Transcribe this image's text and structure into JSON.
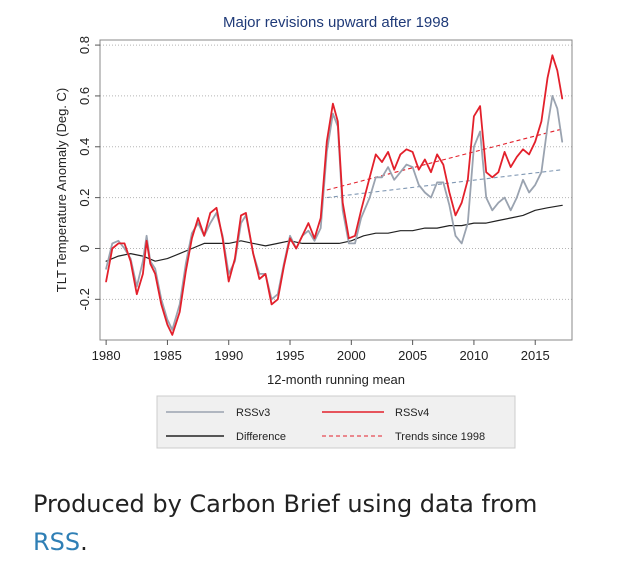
{
  "chart_data": {
    "type": "line",
    "title": "Major revisions upward after 1998",
    "xlabel": "12-month running mean",
    "ylabel": "TLT Temperature Anomaly (Deg. C)",
    "xlim": [
      1979.5,
      2018
    ],
    "ylim": [
      -0.36,
      0.82
    ],
    "xticks": [
      1980,
      1985,
      1990,
      1995,
      2000,
      2005,
      2010,
      2015
    ],
    "yticks": [
      -0.2,
      0,
      0.2,
      0.4,
      0.6,
      0.8
    ],
    "ytick_labels": [
      "-0.2",
      "0",
      "0.2",
      "0.4",
      "0.6",
      "0.8"
    ],
    "grid": true,
    "legend_position": "bottom",
    "series": [
      {
        "name": "RSSv3",
        "color": "#9aa3b0",
        "style": "solid",
        "points": [
          [
            1980.0,
            -0.08
          ],
          [
            1980.5,
            0.02
          ],
          [
            1981.0,
            0.03
          ],
          [
            1981.5,
            0.0
          ],
          [
            1982.0,
            -0.04
          ],
          [
            1982.5,
            -0.15
          ],
          [
            1983.0,
            -0.05
          ],
          [
            1983.3,
            0.05
          ],
          [
            1983.6,
            -0.05
          ],
          [
            1984.0,
            -0.08
          ],
          [
            1984.5,
            -0.2
          ],
          [
            1985.0,
            -0.28
          ],
          [
            1985.4,
            -0.32
          ],
          [
            1986.0,
            -0.22
          ],
          [
            1986.5,
            -0.06
          ],
          [
            1987.0,
            0.06
          ],
          [
            1987.5,
            0.1
          ],
          [
            1988.0,
            0.05
          ],
          [
            1988.5,
            0.1
          ],
          [
            1989.0,
            0.14
          ],
          [
            1989.5,
            0.05
          ],
          [
            1990.0,
            -0.1
          ],
          [
            1990.5,
            -0.05
          ],
          [
            1991.0,
            0.1
          ],
          [
            1991.4,
            0.13
          ],
          [
            1992.0,
            -0.02
          ],
          [
            1992.5,
            -0.1
          ],
          [
            1993.0,
            -0.1
          ],
          [
            1993.5,
            -0.2
          ],
          [
            1994.0,
            -0.18
          ],
          [
            1994.5,
            -0.06
          ],
          [
            1995.0,
            0.05
          ],
          [
            1995.5,
            0.0
          ],
          [
            1996.0,
            0.05
          ],
          [
            1996.5,
            0.07
          ],
          [
            1997.0,
            0.03
          ],
          [
            1997.5,
            0.08
          ],
          [
            1998.0,
            0.38
          ],
          [
            1998.5,
            0.53
          ],
          [
            1998.9,
            0.48
          ],
          [
            1999.3,
            0.15
          ],
          [
            1999.8,
            0.02
          ],
          [
            2000.3,
            0.02
          ],
          [
            2000.8,
            0.12
          ],
          [
            2001.5,
            0.2
          ],
          [
            2002.0,
            0.28
          ],
          [
            2002.5,
            0.28
          ],
          [
            2003.0,
            0.32
          ],
          [
            2003.5,
            0.27
          ],
          [
            2004.0,
            0.3
          ],
          [
            2004.5,
            0.33
          ],
          [
            2005.0,
            0.32
          ],
          [
            2005.5,
            0.25
          ],
          [
            2006.0,
            0.22
          ],
          [
            2006.5,
            0.2
          ],
          [
            2007.0,
            0.26
          ],
          [
            2007.5,
            0.26
          ],
          [
            2008.0,
            0.17
          ],
          [
            2008.5,
            0.05
          ],
          [
            2009.0,
            0.02
          ],
          [
            2009.5,
            0.1
          ],
          [
            2010.0,
            0.4
          ],
          [
            2010.5,
            0.46
          ],
          [
            2011.0,
            0.2
          ],
          [
            2011.5,
            0.15
          ],
          [
            2012.0,
            0.18
          ],
          [
            2012.5,
            0.2
          ],
          [
            2013.0,
            0.15
          ],
          [
            2013.5,
            0.2
          ],
          [
            2014.0,
            0.27
          ],
          [
            2014.5,
            0.22
          ],
          [
            2015.0,
            0.25
          ],
          [
            2015.5,
            0.3
          ],
          [
            2016.0,
            0.48
          ],
          [
            2016.4,
            0.6
          ],
          [
            2016.8,
            0.55
          ],
          [
            2017.2,
            0.42
          ]
        ]
      },
      {
        "name": "RSSv4",
        "color": "#e3202b",
        "style": "solid",
        "points": [
          [
            1980.0,
            -0.13
          ],
          [
            1980.5,
            0.0
          ],
          [
            1981.0,
            0.02
          ],
          [
            1981.5,
            0.02
          ],
          [
            1982.0,
            -0.05
          ],
          [
            1982.5,
            -0.18
          ],
          [
            1983.0,
            -0.1
          ],
          [
            1983.3,
            0.03
          ],
          [
            1983.6,
            -0.06
          ],
          [
            1984.0,
            -0.1
          ],
          [
            1984.5,
            -0.22
          ],
          [
            1985.0,
            -0.3
          ],
          [
            1985.4,
            -0.34
          ],
          [
            1986.0,
            -0.25
          ],
          [
            1986.5,
            -0.09
          ],
          [
            1987.0,
            0.04
          ],
          [
            1987.5,
            0.12
          ],
          [
            1988.0,
            0.05
          ],
          [
            1988.5,
            0.14
          ],
          [
            1989.0,
            0.16
          ],
          [
            1989.5,
            0.04
          ],
          [
            1990.0,
            -0.13
          ],
          [
            1990.5,
            -0.04
          ],
          [
            1991.0,
            0.13
          ],
          [
            1991.4,
            0.14
          ],
          [
            1992.0,
            -0.02
          ],
          [
            1992.5,
            -0.12
          ],
          [
            1993.0,
            -0.1
          ],
          [
            1993.5,
            -0.22
          ],
          [
            1994.0,
            -0.2
          ],
          [
            1994.5,
            -0.07
          ],
          [
            1995.0,
            0.04
          ],
          [
            1995.5,
            0.0
          ],
          [
            1996.0,
            0.05
          ],
          [
            1996.5,
            0.1
          ],
          [
            1997.0,
            0.04
          ],
          [
            1997.5,
            0.12
          ],
          [
            1998.0,
            0.42
          ],
          [
            1998.5,
            0.57
          ],
          [
            1998.9,
            0.5
          ],
          [
            1999.3,
            0.18
          ],
          [
            1999.8,
            0.04
          ],
          [
            2000.3,
            0.05
          ],
          [
            2000.8,
            0.15
          ],
          [
            2001.5,
            0.28
          ],
          [
            2002.0,
            0.37
          ],
          [
            2002.5,
            0.34
          ],
          [
            2003.0,
            0.38
          ],
          [
            2003.5,
            0.31
          ],
          [
            2004.0,
            0.37
          ],
          [
            2004.5,
            0.39
          ],
          [
            2005.0,
            0.38
          ],
          [
            2005.5,
            0.31
          ],
          [
            2006.0,
            0.35
          ],
          [
            2006.5,
            0.3
          ],
          [
            2007.0,
            0.37
          ],
          [
            2007.5,
            0.33
          ],
          [
            2008.0,
            0.22
          ],
          [
            2008.5,
            0.13
          ],
          [
            2009.0,
            0.18
          ],
          [
            2009.5,
            0.27
          ],
          [
            2010.0,
            0.52
          ],
          [
            2010.5,
            0.56
          ],
          [
            2011.0,
            0.3
          ],
          [
            2011.5,
            0.28
          ],
          [
            2012.0,
            0.3
          ],
          [
            2012.5,
            0.38
          ],
          [
            2013.0,
            0.32
          ],
          [
            2013.5,
            0.36
          ],
          [
            2014.0,
            0.39
          ],
          [
            2014.5,
            0.37
          ],
          [
            2015.0,
            0.42
          ],
          [
            2015.5,
            0.5
          ],
          [
            2016.0,
            0.67
          ],
          [
            2016.4,
            0.76
          ],
          [
            2016.8,
            0.7
          ],
          [
            2017.2,
            0.59
          ]
        ]
      },
      {
        "name": "Difference",
        "color": "#222222",
        "style": "solid",
        "points": [
          [
            1980.0,
            -0.05
          ],
          [
            1981.0,
            -0.03
          ],
          [
            1982.0,
            -0.02
          ],
          [
            1983.0,
            -0.03
          ],
          [
            1984.0,
            -0.05
          ],
          [
            1985.0,
            -0.04
          ],
          [
            1986.0,
            -0.02
          ],
          [
            1987.0,
            0.0
          ],
          [
            1988.0,
            0.02
          ],
          [
            1989.0,
            0.02
          ],
          [
            1990.0,
            0.02
          ],
          [
            1991.0,
            0.03
          ],
          [
            1992.0,
            0.02
          ],
          [
            1993.0,
            0.01
          ],
          [
            1994.0,
            0.02
          ],
          [
            1995.0,
            0.03
          ],
          [
            1996.0,
            0.02
          ],
          [
            1997.0,
            0.02
          ],
          [
            1998.0,
            0.02
          ],
          [
            1999.0,
            0.02
          ],
          [
            2000.0,
            0.03
          ],
          [
            2001.0,
            0.05
          ],
          [
            2002.0,
            0.06
          ],
          [
            2003.0,
            0.06
          ],
          [
            2004.0,
            0.07
          ],
          [
            2005.0,
            0.07
          ],
          [
            2006.0,
            0.08
          ],
          [
            2007.0,
            0.08
          ],
          [
            2008.0,
            0.09
          ],
          [
            2009.0,
            0.09
          ],
          [
            2010.0,
            0.1
          ],
          [
            2011.0,
            0.1
          ],
          [
            2012.0,
            0.11
          ],
          [
            2013.0,
            0.12
          ],
          [
            2014.0,
            0.13
          ],
          [
            2015.0,
            0.15
          ],
          [
            2016.0,
            0.16
          ],
          [
            2017.2,
            0.17
          ]
        ]
      },
      {
        "name": "Trends since 1998",
        "style": "dashed",
        "lines": [
          {
            "color": "#e3202b",
            "points": [
              [
                1998.0,
                0.23
              ],
              [
                2017.2,
                0.47
              ]
            ]
          },
          {
            "color": "#7f97b3",
            "points": [
              [
                1998.0,
                0.2
              ],
              [
                2017.2,
                0.31
              ]
            ]
          }
        ]
      }
    ]
  },
  "caption": {
    "text": "Produced by Carbon Brief using data from",
    "link_text": "RSS",
    "suffix": "."
  }
}
